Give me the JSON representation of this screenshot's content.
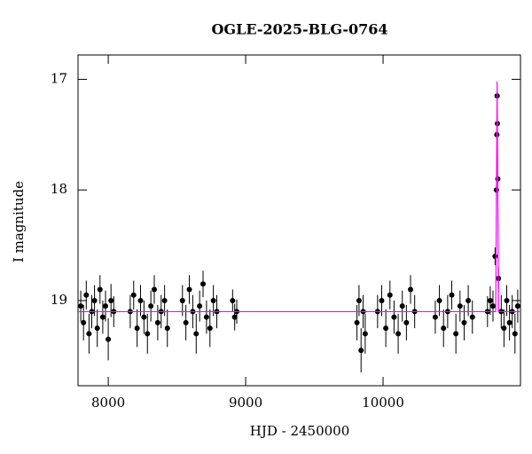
{
  "chart_data": {
    "type": "scatter",
    "title": "OGLE-2025-BLG-0764",
    "x_label": "HJD - 2450000",
    "y_label": "I magnitude",
    "xlim": [
      7780,
      11000
    ],
    "ylim": [
      16.78,
      19.77
    ],
    "y_inverted": true,
    "xticks": [
      8000,
      9000,
      10000
    ],
    "yticks": [
      17,
      18,
      19
    ],
    "points": {
      "color": "#000000",
      "x": [
        7800,
        7820,
        7840,
        7860,
        7880,
        7900,
        7920,
        7940,
        7960,
        7980,
        8000,
        8020,
        8040,
        8160,
        8185,
        8210,
        8235,
        8260,
        8285,
        8310,
        8335,
        8360,
        8385,
        8410,
        8430,
        8540,
        8565,
        8590,
        8615,
        8640,
        8665,
        8690,
        8715,
        8740,
        8765,
        8790,
        8905,
        8920,
        8935,
        9810,
        9825,
        9840,
        9855,
        9870,
        9960,
        9990,
        10020,
        10050,
        10080,
        10110,
        10140,
        10170,
        10200,
        10230,
        10380,
        10410,
        10440,
        10470,
        10500,
        10530,
        10560,
        10590,
        10620,
        10650,
        10760,
        10780,
        10800,
        10815,
        10825,
        10828,
        10830,
        10832,
        10835,
        10840,
        10860,
        10880,
        10900,
        10920,
        10940,
        10960,
        10980
      ],
      "values": [
        19.05,
        19.2,
        18.95,
        19.3,
        19.1,
        19.0,
        19.25,
        18.9,
        19.15,
        19.05,
        19.35,
        19.0,
        19.1,
        19.1,
        18.95,
        19.25,
        19.0,
        19.15,
        19.3,
        19.05,
        18.9,
        19.2,
        19.1,
        19.0,
        19.25,
        19.0,
        19.2,
        18.9,
        19.1,
        19.3,
        19.05,
        18.85,
        19.15,
        19.25,
        19.0,
        19.1,
        19.0,
        19.15,
        19.1,
        19.2,
        19.0,
        19.45,
        19.1,
        19.3,
        19.1,
        19.0,
        19.25,
        18.95,
        19.15,
        19.3,
        19.05,
        19.2,
        18.9,
        19.1,
        19.15,
        19.0,
        19.25,
        19.1,
        18.95,
        19.3,
        19.05,
        19.2,
        19.0,
        19.15,
        19.1,
        19.0,
        19.05,
        18.6,
        18.0,
        17.5,
        17.15,
        17.4,
        17.9,
        18.8,
        19.1,
        19.25,
        19.0,
        19.2,
        19.1,
        19.3,
        19.05
      ],
      "errors": [
        0.14,
        0.16,
        0.13,
        0.18,
        0.15,
        0.14,
        0.17,
        0.13,
        0.15,
        0.14,
        0.19,
        0.15,
        0.14,
        0.15,
        0.13,
        0.17,
        0.14,
        0.15,
        0.18,
        0.14,
        0.13,
        0.16,
        0.15,
        0.14,
        0.17,
        0.14,
        0.16,
        0.13,
        0.15,
        0.18,
        0.14,
        0.12,
        0.15,
        0.17,
        0.14,
        0.15,
        0.1,
        0.12,
        0.11,
        0.16,
        0.14,
        0.2,
        0.15,
        0.18,
        0.15,
        0.14,
        0.17,
        0.13,
        0.15,
        0.18,
        0.14,
        0.16,
        0.13,
        0.15,
        0.15,
        0.14,
        0.17,
        0.15,
        0.13,
        0.18,
        0.14,
        0.16,
        0.14,
        0.15,
        0.14,
        0.13,
        0.14,
        0.08,
        0.05,
        0.04,
        0.03,
        0.04,
        0.05,
        0.1,
        0.15,
        0.17,
        0.14,
        0.16,
        0.15,
        0.18,
        0.15
      ]
    },
    "model": {
      "color": "#ff00ff",
      "x": [
        7780,
        10820,
        10830,
        10840,
        11000
      ],
      "values": [
        19.1,
        19.1,
        17.02,
        19.1,
        19.1
      ]
    }
  }
}
